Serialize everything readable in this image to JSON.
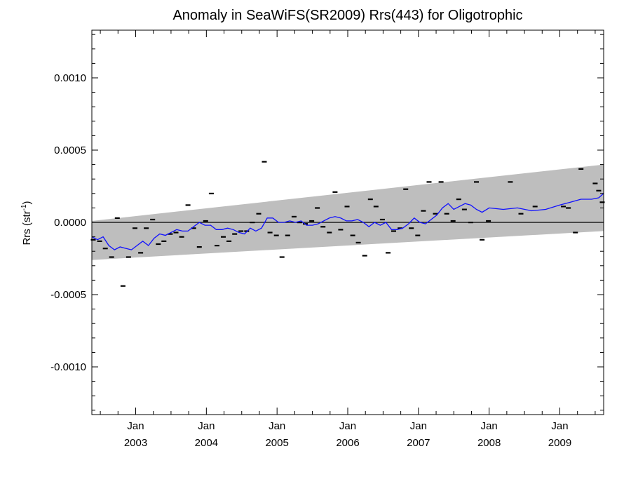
{
  "chart_data": {
    "type": "line",
    "title": "Anomaly in SeaWiFS(SR2009) Rrs(443) for Oligotrophic",
    "ylabel": {
      "main": "Rrs (str",
      "sup": "-1",
      "close": ")"
    },
    "xlabel": "",
    "xlim": [
      2002.38,
      2009.62
    ],
    "ylim": [
      -0.00133,
      0.00133
    ],
    "yticks": [
      {
        "value": 0.001,
        "label": "0.0010"
      },
      {
        "value": 0.0005,
        "label": "0.0005"
      },
      {
        "value": 0.0,
        "label": "0.0000"
      },
      {
        "value": -0.0005,
        "label": "-0.0005"
      },
      {
        "value": -0.001,
        "label": "-0.0010"
      }
    ],
    "xticks": [
      {
        "value": 2003.0,
        "month": "Jan",
        "year": "2003"
      },
      {
        "value": 2004.0,
        "month": "Jan",
        "year": "2004"
      },
      {
        "value": 2005.0,
        "month": "Jan",
        "year": "2005"
      },
      {
        "value": 2006.0,
        "month": "Jan",
        "year": "2006"
      },
      {
        "value": 2007.0,
        "month": "Jan",
        "year": "2007"
      },
      {
        "value": 2008.0,
        "month": "Jan",
        "year": "2008"
      },
      {
        "value": 2009.0,
        "month": "Jan",
        "year": "2009"
      }
    ],
    "grid": false,
    "zero_line": 0.0,
    "band": {
      "x": [
        2002.38,
        2009.62
      ],
      "upper": [
        1e-05,
        0.0004
      ],
      "lower": [
        -0.00026,
        -6e-05
      ],
      "color": "#bebebe"
    },
    "series": [
      {
        "style": "dash-markers",
        "color": "#000000",
        "x": [
          2002.4,
          2002.49,
          2002.57,
          2002.66,
          2002.74,
          2002.82,
          2002.9,
          2002.99,
          2003.07,
          2003.15,
          2003.24,
          2003.32,
          2003.4,
          2003.49,
          2003.57,
          2003.65,
          2003.74,
          2003.82,
          2003.9,
          2003.99,
          2004.07,
          2004.15,
          2004.24,
          2004.32,
          2004.4,
          2004.49,
          2004.57,
          2004.65,
          2004.74,
          2004.82,
          2004.9,
          2004.99,
          2005.07,
          2005.15,
          2005.24,
          2005.32,
          2005.4,
          2005.49,
          2005.57,
          2005.65,
          2005.74,
          2005.82,
          2005.9,
          2005.99,
          2006.07,
          2006.15,
          2006.24,
          2006.32,
          2006.4,
          2006.49,
          2006.57,
          2006.65,
          2006.74,
          2006.82,
          2006.9,
          2006.99,
          2007.07,
          2007.15,
          2007.24,
          2007.32,
          2007.4,
          2007.49,
          2007.57,
          2007.65,
          2007.74,
          2007.82,
          2007.9,
          2007.99,
          2008.3,
          2008.45,
          2008.65,
          2009.05,
          2009.12,
          2009.22,
          2009.3,
          2009.5,
          2009.55,
          2009.6
        ],
        "y": [
          -0.00012,
          -0.00013,
          -0.00018,
          -0.00024,
          3e-05,
          -0.00044,
          -0.00024,
          -4e-05,
          -0.00021,
          -4e-05,
          2e-05,
          -0.00015,
          -0.00013,
          -8e-05,
          -7e-05,
          -0.0001,
          0.00012,
          -4e-05,
          -0.00017,
          1e-05,
          0.0002,
          -0.00016,
          -0.0001,
          -0.00013,
          -8e-05,
          -6e-05,
          -6e-05,
          0.0,
          6e-05,
          0.00042,
          -7e-05,
          -9e-05,
          -0.00024,
          -9e-05,
          4e-05,
          0.0,
          -1e-05,
          1e-05,
          0.0001,
          -3e-05,
          -7e-05,
          0.00021,
          -5e-05,
          0.00011,
          -9e-05,
          -0.00014,
          -0.00023,
          0.00016,
          0.00011,
          2e-05,
          -0.00021,
          -6e-05,
          -4e-05,
          0.00023,
          -4e-05,
          -9e-05,
          8e-05,
          0.00028,
          6e-05,
          0.00028,
          6e-05,
          1e-05,
          0.00016,
          9e-05,
          0.0,
          0.00028,
          -0.00012,
          1e-05,
          0.00028,
          6e-05,
          0.00011,
          0.00011,
          0.0001,
          -7e-05,
          0.00037,
          0.00027,
          0.00022,
          0.00014
        ]
      },
      {
        "style": "line",
        "color": "#1010ff",
        "x": [
          2002.38,
          2002.46,
          2002.54,
          2002.62,
          2002.7,
          2002.78,
          2002.86,
          2002.94,
          2003.02,
          2003.1,
          2003.18,
          2003.26,
          2003.34,
          2003.42,
          2003.5,
          2003.58,
          2003.66,
          2003.74,
          2003.82,
          2003.9,
          2003.98,
          2004.06,
          2004.14,
          2004.22,
          2004.3,
          2004.38,
          2004.46,
          2004.54,
          2004.62,
          2004.7,
          2004.78,
          2004.86,
          2004.94,
          2005.02,
          2005.1,
          2005.18,
          2005.26,
          2005.34,
          2005.42,
          2005.5,
          2005.58,
          2005.66,
          2005.74,
          2005.82,
          2005.9,
          2005.98,
          2006.06,
          2006.14,
          2006.22,
          2006.3,
          2006.38,
          2006.46,
          2006.54,
          2006.62,
          2006.7,
          2006.78,
          2006.86,
          2006.94,
          2007.02,
          2007.1,
          2007.18,
          2007.26,
          2007.34,
          2007.42,
          2007.5,
          2007.58,
          2007.66,
          2007.74,
          2007.82,
          2007.9,
          2008.0,
          2008.2,
          2008.4,
          2008.6,
          2008.8,
          2009.0,
          2009.15,
          2009.3,
          2009.45,
          2009.55,
          2009.62
        ],
        "y": [
          -0.0001,
          -0.00012,
          -0.0001,
          -0.00016,
          -0.00019,
          -0.00017,
          -0.00018,
          -0.00019,
          -0.00016,
          -0.00013,
          -0.00016,
          -0.00011,
          -8e-05,
          -9e-05,
          -7e-05,
          -5e-05,
          -6e-05,
          -6e-05,
          -3e-05,
          0.0,
          -2e-05,
          -2e-05,
          -5e-05,
          -5e-05,
          -4e-05,
          -5e-05,
          -7e-05,
          -8e-05,
          -4e-05,
          -6e-05,
          -4e-05,
          3e-05,
          3e-05,
          0.0,
          0.0,
          1e-05,
          0.0,
          1e-05,
          -2e-05,
          -2e-05,
          -1e-05,
          1e-05,
          3e-05,
          4e-05,
          3e-05,
          1e-05,
          1e-05,
          2e-05,
          0.0,
          -3e-05,
          0.0,
          -2e-05,
          0.0,
          -5e-05,
          -5e-05,
          -4e-05,
          -1e-05,
          3e-05,
          0.0,
          -1e-05,
          2e-05,
          5e-05,
          0.0001,
          0.00013,
          9e-05,
          0.00011,
          0.00013,
          0.00012,
          9e-05,
          7e-05,
          0.0001,
          9e-05,
          0.0001,
          8e-05,
          9e-05,
          0.00012,
          0.00014,
          0.00016,
          0.00016,
          0.00017,
          0.0002
        ]
      }
    ]
  }
}
